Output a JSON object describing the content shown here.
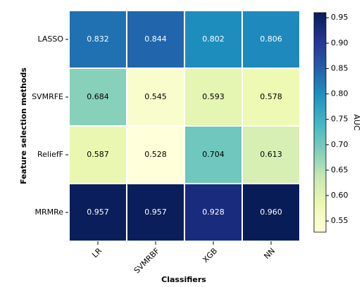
{
  "chart_data": {
    "type": "heatmap",
    "x_label": "Classifiers",
    "y_label": "Feature selection methods",
    "x_categories": [
      "LR",
      "SVMRBF",
      "XGB",
      "NN"
    ],
    "y_categories": [
      "LASSO",
      "SVMRFE",
      "ReliefF",
      "MRMRe"
    ],
    "values": [
      [
        0.832,
        0.844,
        0.802,
        0.806
      ],
      [
        0.684,
        0.545,
        0.593,
        0.578
      ],
      [
        0.587,
        0.528,
        0.704,
        0.613
      ],
      [
        0.957,
        0.957,
        0.928,
        0.96
      ]
    ],
    "value_labels": [
      [
        "0.832",
        "0.844",
        "0.802",
        "0.806"
      ],
      [
        "0.684",
        "0.545",
        "0.593",
        "0.578"
      ],
      [
        "0.587",
        "0.528",
        "0.704",
        "0.613"
      ],
      [
        "0.957",
        "0.957",
        "0.928",
        "0.960"
      ]
    ],
    "colormap": "YlGnBu",
    "colorbar_label": "AUC",
    "clim": [
      0.528,
      0.96
    ],
    "colorbar_ticks": [
      0.55,
      {
        "value": 0.6,
        "label": "0.60"
      },
      0.65,
      {
        "value": 0.7,
        "label": "0.70"
      },
      0.75,
      {
        "value": 0.8,
        "label": "0.80"
      },
      0.85,
      {
        "value": 0.9,
        "label": "0.90"
      },
      0.95
    ]
  }
}
